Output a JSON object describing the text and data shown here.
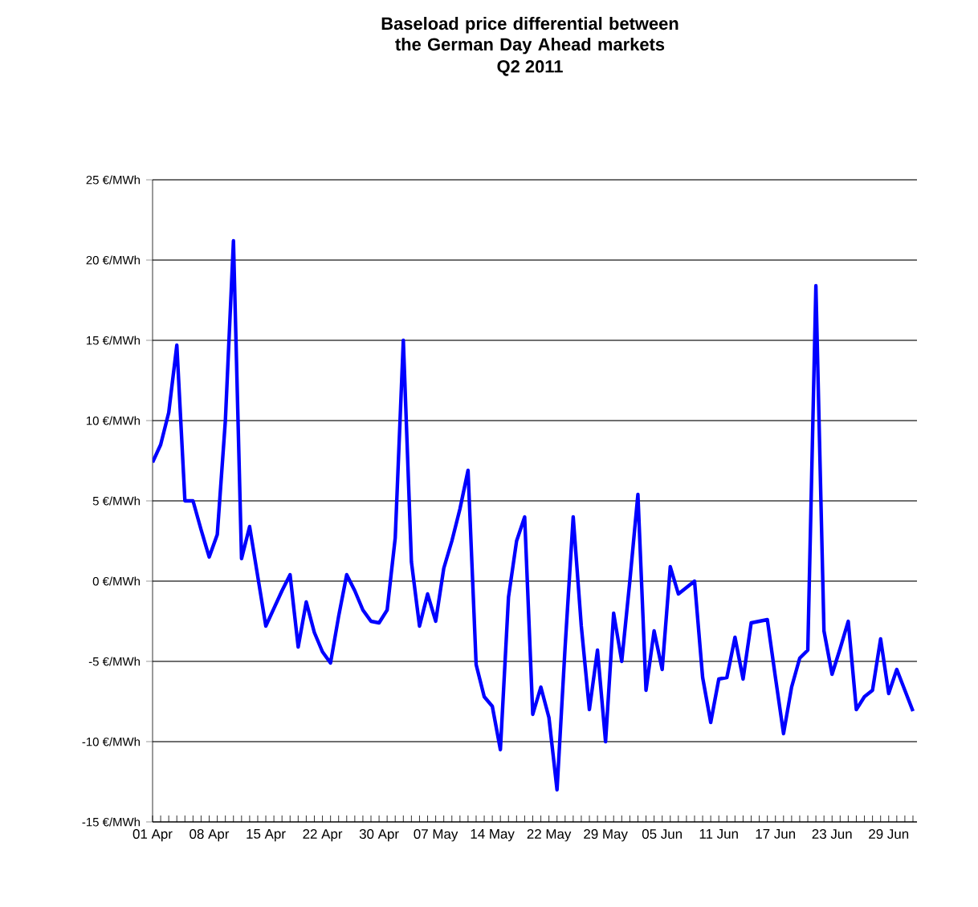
{
  "chart_data": {
    "type": "line",
    "title": "Baseload price differential between the German Day Ahead markets",
    "subtitle": "Q2 2011",
    "categories": [
      "01 Apr",
      null,
      null,
      null,
      null,
      null,
      null,
      "08 Apr",
      null,
      null,
      null,
      null,
      null,
      null,
      "15 Apr",
      null,
      null,
      null,
      null,
      null,
      null,
      "22 Apr",
      null,
      null,
      null,
      null,
      null,
      null,
      "30 Apr",
      null,
      null,
      null,
      null,
      null,
      null,
      "07 May",
      null,
      null,
      null,
      null,
      null,
      null,
      "14 May",
      null,
      null,
      null,
      null,
      null,
      null,
      "22 May",
      null,
      null,
      null,
      null,
      null,
      null,
      "29 May",
      null,
      null,
      null,
      null,
      null,
      null,
      "05 Jun",
      null,
      null,
      null,
      null,
      null,
      null,
      "11 Jun",
      null,
      null,
      null,
      null,
      null,
      null,
      "17 Jun",
      null,
      null,
      null,
      null,
      null,
      null,
      "23 Jun",
      null,
      null,
      null,
      null,
      null,
      null,
      "29 Jun",
      null,
      null,
      null
    ],
    "series": [
      {
        "color": "#0000ff",
        "values": [
          7.4,
          8.5,
          10.5,
          14.7,
          5.0,
          5.0,
          3.2,
          1.5,
          2.9,
          10.0,
          21.2,
          1.4,
          3.4,
          0.3,
          -2.8,
          -1.7,
          -0.6,
          0.4,
          -4.1,
          -1.3,
          -3.2,
          -4.4,
          -5.1,
          -2.2,
          0.4,
          -0.6,
          -1.8,
          -2.5,
          -2.6,
          -1.8,
          2.7,
          15.0,
          1.2,
          -2.8,
          -0.8,
          -2.5,
          0.8,
          2.5,
          4.5,
          6.9,
          -5.2,
          -7.2,
          -7.8,
          -10.5,
          -1.0,
          2.5,
          4.0,
          -8.3,
          -6.6,
          -8.5,
          -13.0,
          -4.1,
          4.0,
          -2.8,
          -8.0,
          -4.3,
          -10.0,
          -2.0,
          -5.0,
          0.0,
          5.4,
          -6.8,
          -3.1,
          -5.5,
          0.9,
          -0.8,
          -0.4,
          0.0,
          -6.0,
          -8.8,
          -6.1,
          -6.0,
          -3.5,
          -6.1,
          -2.6,
          -2.5,
          -2.4,
          -6.0,
          -9.5,
          -6.6,
          -4.8,
          -4.3,
          18.4,
          -3.1,
          -5.8,
          -4.2,
          -2.5,
          -8.0,
          -7.2,
          -6.8,
          -3.6,
          -7.0,
          -5.5,
          -6.8,
          -8.1
        ]
      }
    ],
    "ylim": [
      -15,
      25
    ],
    "yticks": [
      {
        "value": -15,
        "label": "-15 €/MWh"
      },
      {
        "value": -10,
        "label": "-10 €/MWh"
      },
      {
        "value": -5,
        "label": "-5 €/MWh"
      },
      {
        "value": 0,
        "label": "0 €/MWh"
      },
      {
        "value": 5,
        "label": "5 €/MWh"
      },
      {
        "value": 10,
        "label": "10 €/MWh"
      },
      {
        "value": 15,
        "label": "15 €/MWh"
      },
      {
        "value": 20,
        "label": "20 €/MWh"
      },
      {
        "value": 25,
        "label": "25 €/MWh"
      }
    ],
    "grid": "y",
    "marker": "none",
    "line_style": "solid"
  }
}
